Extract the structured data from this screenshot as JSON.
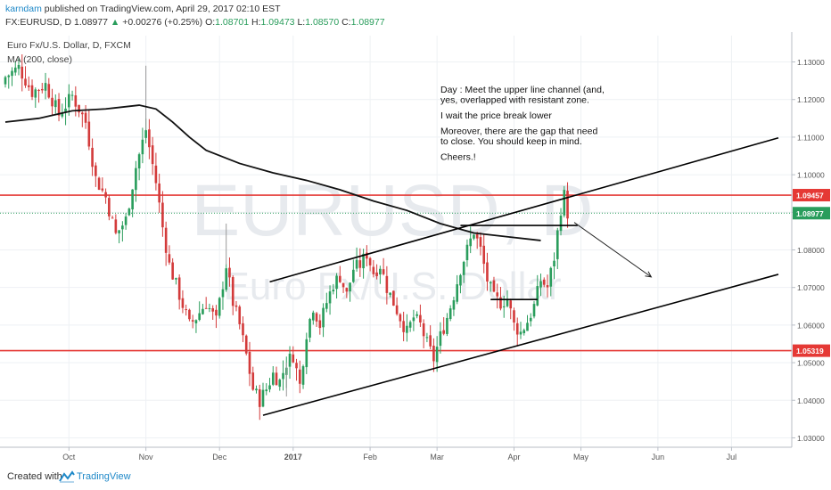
{
  "header": {
    "author": "karndam",
    "published_text": " published on TradingView.com, April 29, 2017 02:10 EST",
    "symbol_line": "FX:EURUSD, D",
    "last": "1.08977",
    "change": "+0.00276 (+0.25%)",
    "o_label": "O:",
    "o_value": "1.08701",
    "h_label": "H:",
    "h_value": "1.09473",
    "l_label": "L:",
    "l_value": "1.08570",
    "c_label": "C:",
    "c_value": "1.08977"
  },
  "legend": {
    "instrument": "Euro Fx/U.S. Dollar, D, FXCM",
    "indicator": "MA (200, close)"
  },
  "watermark": {
    "line1": "EURUSD, D",
    "line2": "Euro Fx/U.S. Dollar"
  },
  "annotation": [
    "Day : Meet the upper line channel (and,",
    "yes, overlapped with resistant zone.",
    "",
    "I wait the price break lower",
    "",
    "Moreover, there are the gap that need",
    "to close. You should keep in mind.",
    "",
    "Cheers.!"
  ],
  "footer": {
    "created": "Created with",
    "brand": "TradingView"
  },
  "colors": {
    "up": "#2a9d5c",
    "down": "#d33b3b",
    "level": "#e53935",
    "ma": "#111111",
    "trend": "#000000",
    "grid": "#eef1f4",
    "last_price": "#2a9d5c"
  },
  "chart_data": {
    "type": "candlestick",
    "ylim": [
      1.0275,
      1.137
    ],
    "y_ticks": [
      "1.03000",
      "1.04000",
      "1.05000",
      "1.06000",
      "1.07000",
      "1.08000",
      "1.09000",
      "1.10000",
      "1.11000",
      "1.12000",
      "1.13000"
    ],
    "x_ticks": [
      {
        "label": "Oct",
        "day": 19
      },
      {
        "label": "Nov",
        "day": 42
      },
      {
        "label": "Dec",
        "day": 64
      },
      {
        "label": "2017",
        "day": 86
      },
      {
        "label": "Feb",
        "day": 109
      },
      {
        "label": "Mar",
        "day": 129
      },
      {
        "label": "Apr",
        "day": 152
      },
      {
        "label": "May",
        "day": 172
      },
      {
        "label": "Jun",
        "day": 195
      },
      {
        "label": "Jul",
        "day": 217
      }
    ],
    "x_range": [
      0,
      235
    ],
    "price_labels": [
      {
        "text": "1.09457",
        "value": 1.09457,
        "kind": "level"
      },
      {
        "text": "1.08977",
        "value": 1.08977,
        "kind": "last"
      },
      {
        "text": "1.05319",
        "value": 1.05319,
        "kind": "level"
      }
    ],
    "horizontal_levels": [
      1.09457,
      1.05319
    ],
    "last_price": 1.08977,
    "anchors": [
      [
        0,
        1.126
      ],
      [
        4,
        1.1285
      ],
      [
        8,
        1.122
      ],
      [
        12,
        1.124
      ],
      [
        16,
        1.116
      ],
      [
        20,
        1.121
      ],
      [
        24,
        1.114
      ],
      [
        27,
        1.099
      ],
      [
        30,
        1.094
      ],
      [
        33,
        1.084
      ],
      [
        36,
        1.088
      ],
      [
        39,
        1.102
      ],
      [
        42,
        1.112
      ],
      [
        45,
        1.098
      ],
      [
        47,
        1.086
      ],
      [
        49,
        1.076
      ],
      [
        52,
        1.068
      ],
      [
        55,
        1.06
      ],
      [
        57,
        1.062
      ],
      [
        60,
        1.066
      ],
      [
        63,
        1.061
      ],
      [
        66,
        1.076
      ],
      [
        68,
        1.066
      ],
      [
        70,
        1.06
      ],
      [
        72,
        1.052
      ],
      [
        74,
        1.043
      ],
      [
        76,
        1.04
      ],
      [
        78,
        1.043
      ],
      [
        80,
        1.047
      ],
      [
        82,
        1.045
      ],
      [
        84,
        1.05
      ],
      [
        86,
        1.052
      ],
      [
        88,
        1.044
      ],
      [
        90,
        1.058
      ],
      [
        92,
        1.065
      ],
      [
        94,
        1.06
      ],
      [
        96,
        1.066
      ],
      [
        98,
        1.071
      ],
      [
        100,
        1.073
      ],
      [
        102,
        1.068
      ],
      [
        104,
        1.075
      ],
      [
        106,
        1.076
      ],
      [
        108,
        1.079
      ],
      [
        110,
        1.074
      ],
      [
        112,
        1.076
      ],
      [
        114,
        1.07
      ],
      [
        116,
        1.066
      ],
      [
        118,
        1.062
      ],
      [
        120,
        1.058
      ],
      [
        122,
        1.062
      ],
      [
        124,
        1.06
      ],
      [
        126,
        1.055
      ],
      [
        128,
        1.051
      ],
      [
        130,
        1.057
      ],
      [
        132,
        1.062
      ],
      [
        134,
        1.068
      ],
      [
        136,
        1.075
      ],
      [
        138,
        1.08
      ],
      [
        140,
        1.085
      ],
      [
        142,
        1.08
      ],
      [
        144,
        1.072
      ],
      [
        146,
        1.067
      ],
      [
        148,
        1.066
      ],
      [
        150,
        1.067
      ],
      [
        152,
        1.06
      ],
      [
        154,
        1.058
      ],
      [
        156,
        1.061
      ],
      [
        158,
        1.065
      ],
      [
        160,
        1.072
      ],
      [
        162,
        1.07
      ],
      [
        164,
        1.078
      ],
      [
        166,
        1.091
      ],
      [
        167,
        1.0945
      ],
      [
        168,
        1.0898
      ]
    ],
    "candles_to_day": 168,
    "ma200": [
      [
        0,
        1.114
      ],
      [
        10,
        1.115
      ],
      [
        20,
        1.117
      ],
      [
        30,
        1.1175
      ],
      [
        40,
        1.1185
      ],
      [
        45,
        1.1175
      ],
      [
        50,
        1.114
      ],
      [
        55,
        1.11
      ],
      [
        60,
        1.1065
      ],
      [
        70,
        1.103
      ],
      [
        80,
        1.1005
      ],
      [
        90,
        1.0985
      ],
      [
        100,
        1.096
      ],
      [
        110,
        1.093
      ],
      [
        120,
        1.0905
      ],
      [
        130,
        1.087
      ],
      [
        140,
        1.0845
      ],
      [
        150,
        1.0835
      ],
      [
        160,
        1.0825
      ]
    ],
    "trendlines": [
      {
        "name": "upper-channel",
        "points": [
          [
            79,
            1.0715
          ],
          [
            231,
            1.1098
          ]
        ]
      },
      {
        "name": "lower-channel",
        "points": [
          [
            77,
            1.036
          ],
          [
            231,
            1.0735
          ]
        ]
      },
      {
        "name": "support-line",
        "points": [
          [
            136,
            1.0865
          ],
          [
            171,
            1.0865
          ]
        ]
      },
      {
        "name": "neckline",
        "points": [
          [
            145,
            1.0668
          ],
          [
            159,
            1.0668
          ]
        ]
      }
    ],
    "forecast_arrow": {
      "from": [
        170,
        1.0873
      ],
      "to": [
        193,
        1.0728
      ]
    }
  }
}
